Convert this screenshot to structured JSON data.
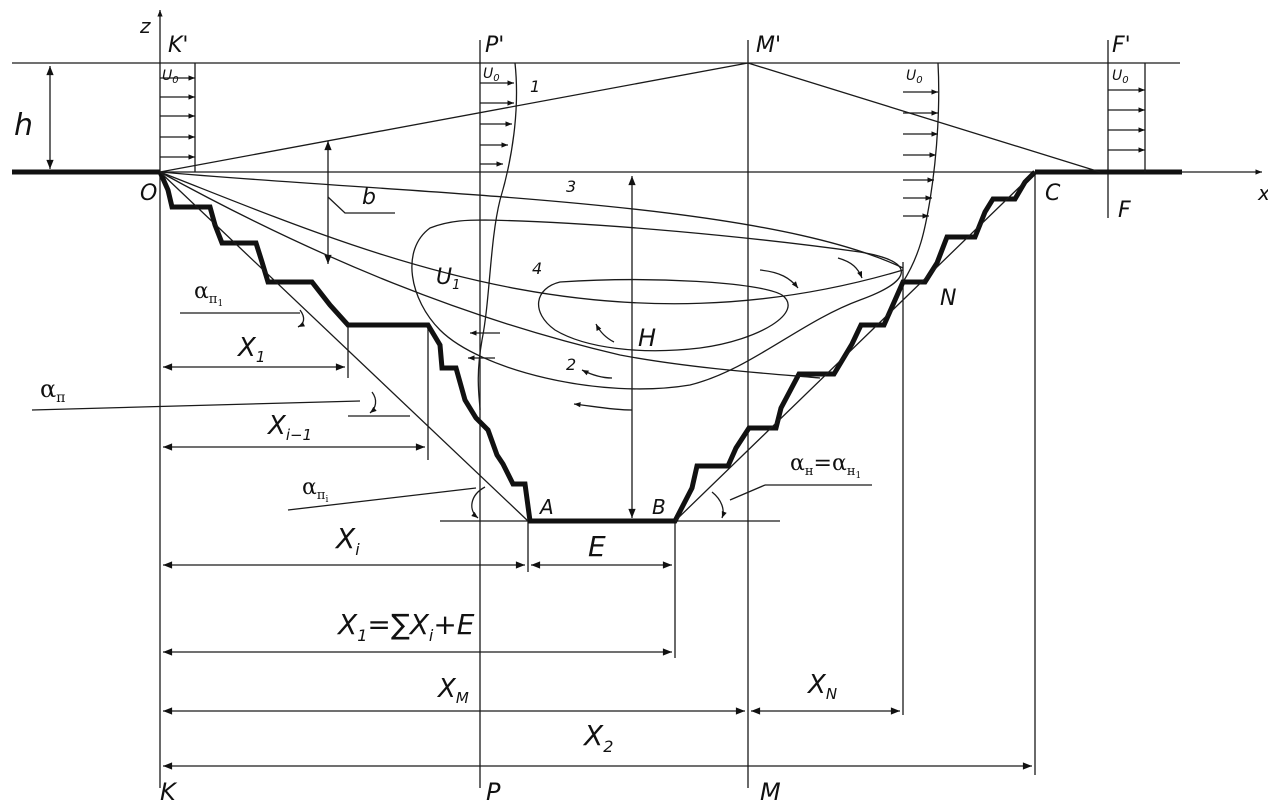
{
  "axes": {
    "z": "z",
    "x": "x"
  },
  "points": {
    "K_top": "K'",
    "P_top": "P'",
    "M_top": "M'",
    "F_top": "F'",
    "O": "O",
    "C": "C",
    "F": "F",
    "A": "A",
    "B": "B",
    "N": "N",
    "K": "K",
    "P": "P",
    "M": "M"
  },
  "velocity": {
    "U0": "U",
    "U0_sub": "0",
    "U1": "U",
    "U1_sub": "1"
  },
  "dimensions": {
    "h": "h",
    "b": "b",
    "H": "H",
    "E": "E",
    "X1": "X",
    "X1_sub": "1",
    "Xi_1": "X",
    "Xi_1_sub": "i−1",
    "Xi": "X",
    "Xi_sub": "i",
    "X1p": "X",
    "X1p_sub": "1",
    "X1p_rest": "=∑X",
    "X1p_sub2": "i",
    "X1p_end": "+E",
    "XM": "X",
    "XM_sub": "M",
    "XN": "X",
    "XN_sub": "N",
    "X2p": "X",
    "X2p_sub": "2"
  },
  "curves": {
    "c1": "1",
    "c2": "2",
    "c3": "3",
    "c4": "4"
  },
  "angles": {
    "alpha": "α",
    "sub_p": "п",
    "sub_n": "н",
    "sub_1": "1",
    "sub_i": "i",
    "eq": "="
  }
}
